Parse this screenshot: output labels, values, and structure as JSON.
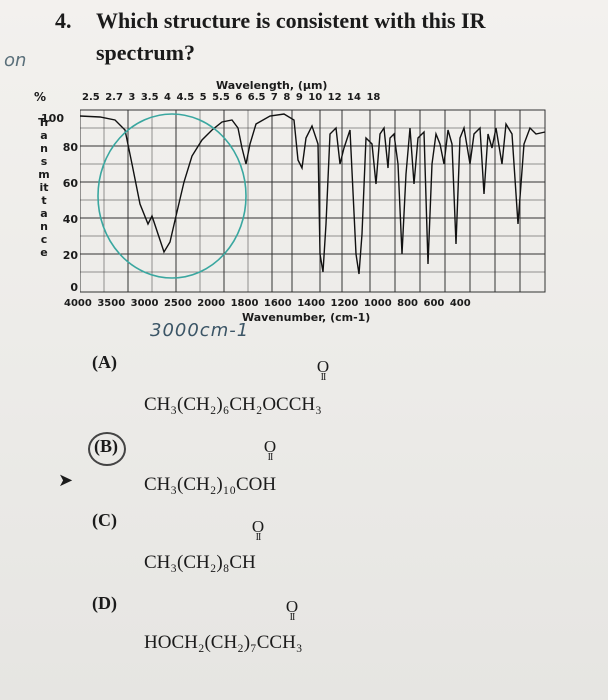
{
  "question": {
    "number": "4.",
    "line1": "Which structure is consistent with this IR",
    "line2": "spectrum?"
  },
  "handwriting": {
    "margin_mark": "on",
    "wavenumber_note": "3000cm-1"
  },
  "spectrum": {
    "wavelength_title": "Wavelength, (µm)",
    "wavelength_ticks": "2.5 2.7  3    3.5  4  4.5 5  5.5  6  6.5  7   8   9  10  12  14  18",
    "percent_sign": "%",
    "y_axis_label": "Transmittance",
    "y_ticks": [
      "100",
      "80",
      "60",
      "40",
      "20",
      "0"
    ],
    "x_ticks": "4000  3500  3000  2500  2000 1800 1600 1400 1200 1000  800   600  400",
    "wavenumber_title": "Wavenumber, (cm-1)"
  },
  "options": [
    {
      "label": "(A)",
      "carbonyl": "O",
      "formula": "CH₃(CH₂)₆CH₂OCCH₃"
    },
    {
      "label": "(B)",
      "carbonyl": "O",
      "formula": "CH₃(CH₂)₁₀COH"
    },
    {
      "label": "(C)",
      "carbonyl": "O",
      "formula": "CH₃(CH₂)₈CH"
    },
    {
      "label": "(D)",
      "carbonyl": "O",
      "formula": "HOCH₂(CH₂)₇CCH₃"
    }
  ]
}
